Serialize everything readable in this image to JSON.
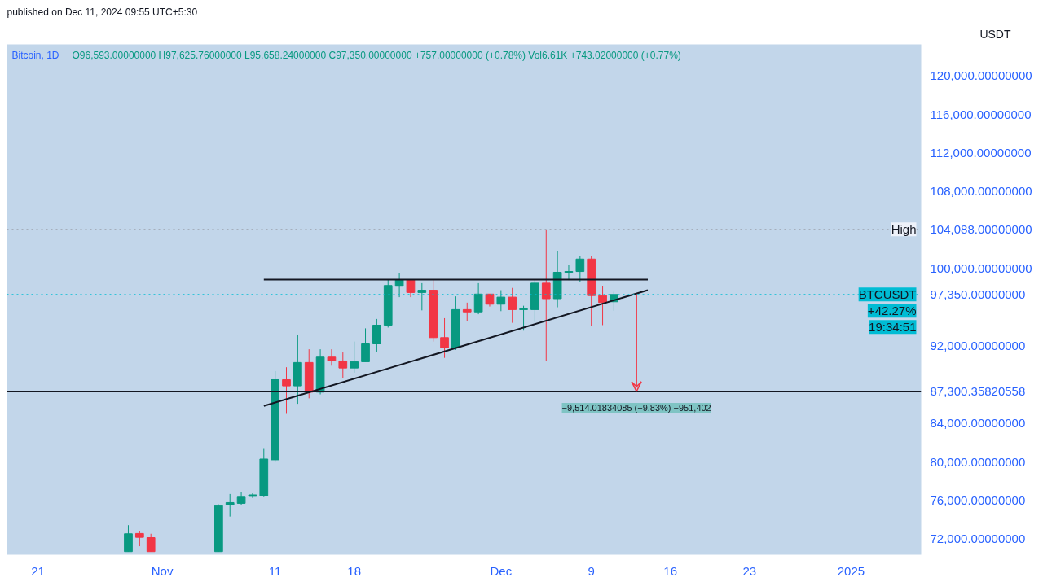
{
  "chart_data": {
    "type": "candlestick",
    "title": "Bitcoin, 1D",
    "subtitle": "O96,593.00000000  H97,625.76000000  L95,658.24000000  C97,350.00000000  +757.00000000 (+0.78%)  Vol6.61K  +743.02000000 (+0.77%)",
    "ylabel": "USDT",
    "x": [
      "2024-10-29",
      "2024-10-30",
      "2024-10-31",
      "2024-11-06",
      "2024-11-07",
      "2024-11-08",
      "2024-11-09",
      "2024-11-10",
      "2024-11-11",
      "2024-11-12",
      "2024-11-13",
      "2024-11-14",
      "2024-11-15",
      "2024-11-16",
      "2024-11-17",
      "2024-11-18",
      "2024-11-19",
      "2024-11-20",
      "2024-11-21",
      "2024-11-22",
      "2024-11-23",
      "2024-11-24",
      "2024-11-25",
      "2024-11-26",
      "2024-11-27",
      "2024-11-28",
      "2024-11-29",
      "2024-11-30",
      "2024-12-01",
      "2024-12-02",
      "2024-12-03",
      "2024-12-04",
      "2024-12-05",
      "2024-12-06",
      "2024-12-07",
      "2024-12-08",
      "2024-12-09",
      "2024-12-10",
      "2024-12-11"
    ],
    "ohlc": [
      [
        70710,
        73450,
        70710,
        72560
      ],
      [
        72590,
        72800,
        71270,
        72190
      ],
      [
        72160,
        72560,
        70710,
        70710
      ],
      [
        70710,
        75600,
        70710,
        75470
      ],
      [
        75550,
        76680,
        74340,
        75790
      ],
      [
        75710,
        76920,
        75500,
        76350
      ],
      [
        76430,
        76750,
        76270,
        76590
      ],
      [
        76510,
        81350,
        76350,
        80300
      ],
      [
        80220,
        89410,
        80000,
        88520
      ],
      [
        88520,
        89810,
        84980,
        87880
      ],
      [
        87880,
        93200,
        86020,
        90300
      ],
      [
        90300,
        91670,
        86590,
        87230
      ],
      [
        87230,
        91670,
        87000,
        90860
      ],
      [
        90860,
        91670,
        89970,
        90460
      ],
      [
        90460,
        91340,
        88680,
        89730
      ],
      [
        89730,
        92470,
        89250,
        90380
      ],
      [
        90380,
        93840,
        90380,
        92230
      ],
      [
        92230,
        94810,
        91430,
        94170
      ],
      [
        94170,
        98920,
        93920,
        98280
      ],
      [
        98200,
        99570,
        97070,
        98840
      ],
      [
        98840,
        98840,
        97070,
        97550
      ],
      [
        97550,
        98520,
        95700,
        97790
      ],
      [
        97790,
        98840,
        92470,
        92880
      ],
      [
        92880,
        94890,
        90780,
        91830
      ],
      [
        91830,
        97150,
        91600,
        95780
      ],
      [
        95780,
        96500,
        94570,
        95540
      ],
      [
        95540,
        98520,
        95300,
        97390
      ],
      [
        97390,
        97390,
        96100,
        96340
      ],
      [
        96340,
        97790,
        95620,
        97070
      ],
      [
        97070,
        98030,
        94410,
        95780
      ],
      [
        95780,
        96180,
        93600,
        95850
      ],
      [
        95780,
        98840,
        94490,
        98520
      ],
      [
        98520,
        104088,
        90460,
        96910
      ],
      [
        96910,
        101820,
        96020,
        99650
      ],
      [
        99650,
        100370,
        98840,
        99730
      ],
      [
        99730,
        101340,
        98680,
        101020
      ],
      [
        101020,
        101340,
        94080,
        97230
      ],
      [
        97230,
        98200,
        94170,
        96500
      ],
      [
        96593,
        97625.76,
        95658.24,
        97350
      ]
    ],
    "series": [
      {
        "type": "line",
        "color": "#131722",
        "x": [
          "2024-11-10",
          "2024-12-14"
        ],
        "values": [
          98900,
          98900
        ]
      },
      {
        "type": "line",
        "color": "#131722",
        "x": [
          "2024-11-10",
          "2024-12-14"
        ],
        "values": [
          85800,
          97800
        ]
      }
    ],
    "ref_lines": [
      {
        "axis": "y",
        "value": 104088,
        "label": "High",
        "color": "#9598a1",
        "line_style": "dotted"
      },
      {
        "axis": "y",
        "value": 97350,
        "label": "BTCUSDT",
        "color": "#00bcd4",
        "line_style": "dotted"
      },
      {
        "axis": "y",
        "value": 87300.35820558,
        "color": "#131722",
        "line_style": "solid"
      }
    ],
    "annotations": [
      "published on Dec 11, 2024 09:55 UTC+5:30",
      "+42.27%",
      "19:34:51",
      {
        "text": "−9,514.01834085 (−9.83%) −951,402",
        "x": "2024-12-13",
        "y": 87300.35820558
      }
    ],
    "xlim": [
      "2024-10-18T06:00",
      "2025-01-07T05:00"
    ],
    "ylim": [
      70390,
      123260
    ],
    "xticks": [
      {
        "value": "2024-10-21",
        "label": "21"
      },
      {
        "value": "2024-11-01",
        "label": "Nov"
      },
      {
        "value": "2024-11-11",
        "label": "11"
      },
      {
        "value": "2024-11-18",
        "label": "18"
      },
      {
        "value": "2024-12-01",
        "label": "Dec"
      },
      {
        "value": "2024-12-09",
        "label": "9"
      },
      {
        "value": "2024-12-16",
        "label": "16"
      },
      {
        "value": "2024-12-23",
        "label": "23"
      },
      {
        "value": "2025-01-01",
        "label": "2025"
      }
    ],
    "yticks": [
      {
        "value": 72000,
        "label": "72,000.00000000"
      },
      {
        "value": 76000,
        "label": "76,000.00000000"
      },
      {
        "value": 80000,
        "label": "80,000.00000000"
      },
      {
        "value": 84000,
        "label": "84,000.00000000"
      },
      {
        "value": 87300.35820558,
        "label": "87,300.35820558"
      },
      {
        "value": 92000,
        "label": "92,000.00000000"
      },
      {
        "value": 97350,
        "label": "97,350.00000000"
      },
      {
        "value": 100000,
        "label": "100,000.00000000"
      },
      {
        "value": 104088,
        "label": "104,088.00000000"
      },
      {
        "value": 108000,
        "label": "108,000.00000000"
      },
      {
        "value": 112000,
        "label": "112,000.00000000"
      },
      {
        "value": 116000,
        "label": "116,000.00000000"
      },
      {
        "value": 120000,
        "label": "120,000.00000000"
      }
    ],
    "grid": false
  }
}
